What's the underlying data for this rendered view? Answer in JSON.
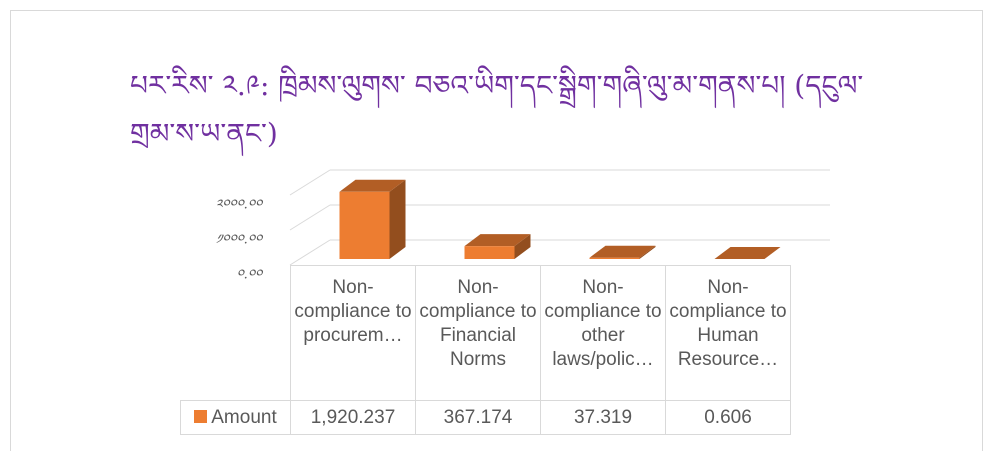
{
  "chart_data": {
    "type": "bar3d",
    "title": "པར་རིས་ ༢.༩: ཁྲིམས་ལུགས་ བཅའ་ཡིག་དང་སྒྲིག་གཞི་ལུ་མ་གནས་པ། (དངུལ་ གྲམ་ས་ཡ་ནང་)",
    "categories": [
      "Non-compliance to procurem…",
      "Non-compliance to Financial Norms",
      "Non-compliance to other laws/polic…",
      "Non-compliance to Human Resource…"
    ],
    "series": [
      {
        "name": "Amount",
        "color": "#ed7d31",
        "values": [
          1920.237,
          367.174,
          37.319,
          0.606
        ],
        "value_labels": [
          "1,920.237",
          "367.174",
          "37.319",
          "0.606"
        ]
      }
    ],
    "ylim": [
      0,
      2000
    ],
    "yticks": [
      {
        "value": 0,
        "label": "༠.༠༠"
      },
      {
        "value": 1000,
        "label": "༡༠༠༠.༠༠"
      },
      {
        "value": 2000,
        "label": "༢༠༠༠.༠༠"
      }
    ],
    "grid": true
  }
}
